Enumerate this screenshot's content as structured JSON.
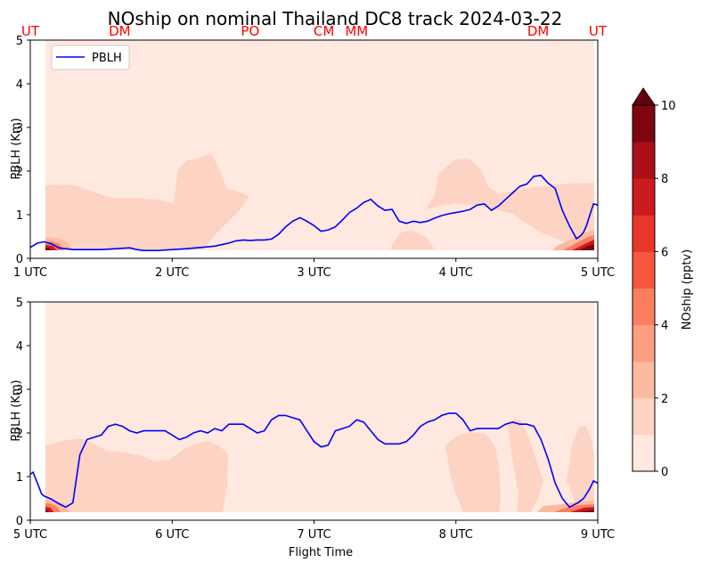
{
  "title": "NOship on nominal Thailand DC8 track 2024-03-22",
  "location_labels": [
    {
      "text": "UT",
      "x": 1.0
    },
    {
      "text": "DM",
      "x": 1.63
    },
    {
      "text": "PO",
      "x": 2.55
    },
    {
      "text": "CM",
      "x": 3.07
    },
    {
      "text": "MM",
      "x": 3.3
    },
    {
      "text": "DM",
      "x": 4.58
    },
    {
      "text": "UT",
      "x": 5.0
    }
  ],
  "colors": {
    "pblh_line": "#0000ff",
    "location_label": "#ff0000",
    "colormap": [
      "#fee8e0",
      "#fdd3c3",
      "#fcbba1",
      "#fc9f81",
      "#fb7f5f",
      "#f6573e",
      "#e8362b",
      "#cb1b1e",
      "#ac1016",
      "#7c0510"
    ]
  },
  "chart_data": [
    {
      "type": "line",
      "panel": "top",
      "xlabel": "",
      "ylabel": "PBLH (Km)",
      "xlim": [
        1.0,
        5.0
      ],
      "ylim": [
        0,
        5
      ],
      "xticks": [
        1,
        2,
        3,
        4,
        5
      ],
      "xticklabels": [
        "1 UTC",
        "2 UTC",
        "3 UTC",
        "4 UTC",
        "5 UTC"
      ],
      "yticks": [
        0,
        1,
        2,
        3,
        4,
        5
      ],
      "legend": {
        "entries": [
          "PBLH"
        ],
        "placement": "upper-left"
      },
      "series": [
        {
          "name": "PBLH",
          "x": [
            1.0,
            1.05,
            1.1,
            1.15,
            1.2,
            1.3,
            1.4,
            1.5,
            1.6,
            1.7,
            1.75,
            1.8,
            1.9,
            2.0,
            2.1,
            2.2,
            2.3,
            2.4,
            2.45,
            2.5,
            2.55,
            2.6,
            2.65,
            2.7,
            2.75,
            2.8,
            2.85,
            2.9,
            2.95,
            3.0,
            3.05,
            3.1,
            3.15,
            3.2,
            3.25,
            3.3,
            3.35,
            3.4,
            3.45,
            3.5,
            3.55,
            3.6,
            3.65,
            3.7,
            3.75,
            3.8,
            3.85,
            3.9,
            3.95,
            4.0,
            4.05,
            4.1,
            4.15,
            4.2,
            4.25,
            4.3,
            4.35,
            4.4,
            4.45,
            4.5,
            4.55,
            4.6,
            4.65,
            4.7,
            4.75,
            4.8,
            4.85,
            4.88,
            4.9,
            4.92,
            4.95,
            4.97,
            5.0
          ],
          "y": [
            0.25,
            0.35,
            0.38,
            0.33,
            0.24,
            0.2,
            0.2,
            0.2,
            0.22,
            0.24,
            0.2,
            0.18,
            0.18,
            0.2,
            0.22,
            0.25,
            0.28,
            0.35,
            0.4,
            0.42,
            0.41,
            0.42,
            0.42,
            0.44,
            0.55,
            0.72,
            0.85,
            0.93,
            0.85,
            0.75,
            0.62,
            0.65,
            0.72,
            0.88,
            1.05,
            1.15,
            1.28,
            1.35,
            1.2,
            1.1,
            1.12,
            0.85,
            0.8,
            0.85,
            0.82,
            0.85,
            0.92,
            0.98,
            1.02,
            1.05,
            1.08,
            1.12,
            1.22,
            1.25,
            1.1,
            1.2,
            1.35,
            1.5,
            1.65,
            1.7,
            1.88,
            1.9,
            1.72,
            1.6,
            1.1,
            0.75,
            0.45,
            0.52,
            0.6,
            0.75,
            1.05,
            1.25,
            1.22
          ]
        }
      ]
    },
    {
      "type": "line",
      "panel": "bottom",
      "xlabel": "Flight Time",
      "ylabel": "PBLH (Km)",
      "xlim": [
        5.0,
        9.0
      ],
      "ylim": [
        0,
        5
      ],
      "xticks": [
        5,
        6,
        7,
        8,
        9
      ],
      "xticklabels": [
        "5 UTC",
        "6 UTC",
        "7 UTC",
        "8 UTC",
        "9 UTC"
      ],
      "yticks": [
        0,
        1,
        2,
        3,
        4,
        5
      ],
      "series": [
        {
          "name": "PBLH",
          "x": [
            5.0,
            5.02,
            5.05,
            5.08,
            5.1,
            5.15,
            5.2,
            5.25,
            5.3,
            5.35,
            5.4,
            5.45,
            5.5,
            5.55,
            5.6,
            5.65,
            5.7,
            5.75,
            5.8,
            5.85,
            5.9,
            5.95,
            6.0,
            6.05,
            6.1,
            6.15,
            6.2,
            6.25,
            6.3,
            6.35,
            6.4,
            6.45,
            6.5,
            6.55,
            6.6,
            6.65,
            6.7,
            6.75,
            6.8,
            6.85,
            6.9,
            6.95,
            7.0,
            7.05,
            7.1,
            7.15,
            7.2,
            7.25,
            7.3,
            7.35,
            7.4,
            7.45,
            7.5,
            7.55,
            7.6,
            7.65,
            7.7,
            7.75,
            7.8,
            7.85,
            7.9,
            7.95,
            8.0,
            8.05,
            8.1,
            8.15,
            8.2,
            8.25,
            8.3,
            8.35,
            8.4,
            8.45,
            8.5,
            8.55,
            8.6,
            8.65,
            8.7,
            8.75,
            8.8,
            8.83,
            8.86,
            8.9,
            8.94,
            8.97,
            9.0
          ],
          "y": [
            1.05,
            1.1,
            0.85,
            0.6,
            0.55,
            0.48,
            0.38,
            0.3,
            0.4,
            1.5,
            1.85,
            1.9,
            1.95,
            2.15,
            2.2,
            2.15,
            2.05,
            2.0,
            2.05,
            2.05,
            2.05,
            2.05,
            1.95,
            1.85,
            1.9,
            2.0,
            2.05,
            2.0,
            2.1,
            2.05,
            2.2,
            2.2,
            2.2,
            2.1,
            2.0,
            2.05,
            2.3,
            2.4,
            2.4,
            2.35,
            2.3,
            2.05,
            1.8,
            1.68,
            1.72,
            2.05,
            2.1,
            2.15,
            2.3,
            2.25,
            2.05,
            1.85,
            1.75,
            1.75,
            1.75,
            1.8,
            1.95,
            2.15,
            2.25,
            2.3,
            2.4,
            2.45,
            2.45,
            2.3,
            2.05,
            2.1,
            2.1,
            2.1,
            2.1,
            2.2,
            2.25,
            2.2,
            2.2,
            2.15,
            1.85,
            1.4,
            0.85,
            0.5,
            0.3,
            0.35,
            0.4,
            0.5,
            0.7,
            0.9,
            0.85
          ]
        }
      ]
    },
    {
      "type": "colorbar",
      "label": "NOship (pptv)",
      "range": [
        0,
        10
      ],
      "ticks": [
        0,
        2,
        4,
        6,
        8,
        10
      ],
      "levels": [
        0,
        1,
        2,
        3,
        4,
        5,
        6,
        7,
        8,
        9,
        10
      ],
      "extend": "max"
    }
  ]
}
